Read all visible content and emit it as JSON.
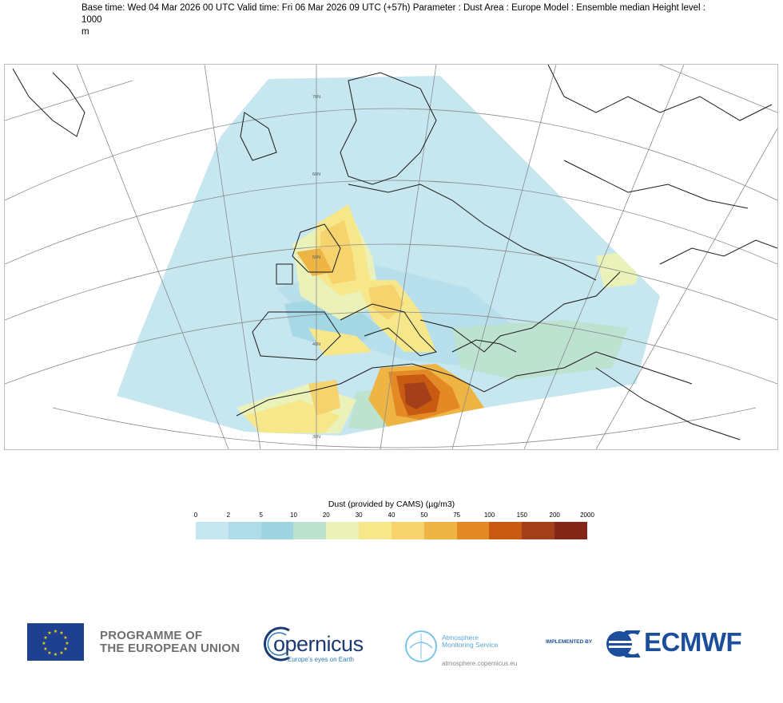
{
  "header": {
    "line1": "Base time: Wed 04 Mar 2026 00 UTC Valid time: Fri 06 Mar 2026 09 UTC (+57h) Parameter : Dust Area : Europe Model : Ensemble median Height level : 1000",
    "line2": "m"
  },
  "map": {
    "lat_labels": [
      "70N",
      "60N",
      "50N",
      "40N",
      "30N"
    ],
    "colors": {
      "v0": "#c6e6f0",
      "v2": "#b0dce9",
      "v5": "#9fd5e2",
      "v10": "#bde2cf",
      "v20": "#eaf1b9",
      "v30": "#f7e78b",
      "v40": "#f6d36c",
      "v50": "#efb544",
      "v75": "#e38a26",
      "v100": "#c95a12",
      "v150": "#a3401a",
      "v200": "#842719",
      "coast": "#1a1a1a",
      "grid": "#8a8a8a"
    }
  },
  "legend": {
    "title": "Dust (provided by CAMS) (µg/m3)",
    "ticks": [
      "0",
      "2",
      "5",
      "10",
      "20",
      "30",
      "40",
      "50",
      "75",
      "100",
      "150",
      "200",
      "2000"
    ],
    "colors": [
      "#c6e6f0",
      "#b0dce9",
      "#9fd5e2",
      "#bde2cf",
      "#eaf1b9",
      "#f7e78b",
      "#f6d36c",
      "#efb544",
      "#e38a26",
      "#c95a12",
      "#a3401a",
      "#842719"
    ]
  },
  "footer": {
    "eu_line1": "PROGRAMME OF",
    "eu_line2": "THE EUROPEAN UNION",
    "copernicus_name": "opernicus",
    "copernicus_tagline": "Europe's eyes on Earth",
    "atmos_name_line1": "Atmosphere",
    "atmos_name_line2": "Monitoring Service",
    "atmos_url": "atmosphere.copernicus.eu",
    "implemented_by": "IMPLEMENTED BY",
    "ecmwf": "ECMWF"
  }
}
